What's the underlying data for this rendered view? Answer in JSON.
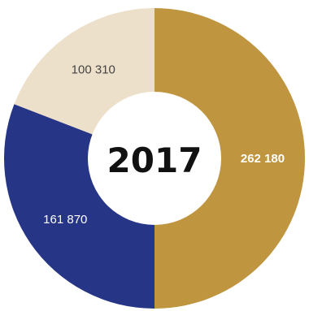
{
  "chart_data": {
    "type": "pie",
    "variant": "donut",
    "center_label": "2017",
    "slices": [
      {
        "label": "262 180",
        "value": 262180,
        "color": "#BF953F",
        "label_color": "#ffffff",
        "label_weight": "bold"
      },
      {
        "label": "161 870",
        "value": 161870,
        "color": "#263586",
        "label_color": "#ffffff",
        "label_weight": "normal"
      },
      {
        "label": "100 310",
        "value": 100310,
        "color": "#EDE0CB",
        "label_color": "#444444",
        "label_weight": "normal"
      }
    ],
    "start": "top",
    "direction": "clockwise",
    "legend": "none"
  }
}
